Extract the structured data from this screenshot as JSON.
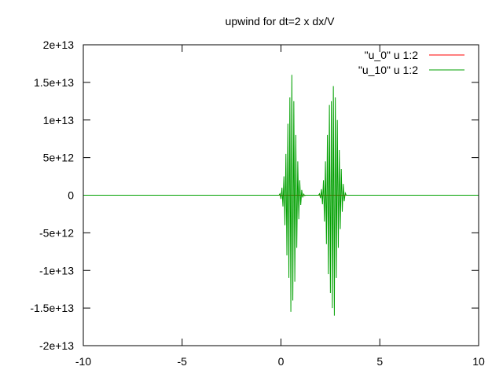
{
  "chart_data": {
    "type": "line",
    "title": "upwind for dt=2 x dx/V",
    "xlim": [
      -10,
      10
    ],
    "ylim": [
      -20000000000000.0,
      20000000000000.0
    ],
    "xticks": [
      {
        "value": -10,
        "label": "-10"
      },
      {
        "value": -5,
        "label": "-5"
      },
      {
        "value": 0,
        "label": "0"
      },
      {
        "value": 5,
        "label": "5"
      },
      {
        "value": 10,
        "label": "10"
      }
    ],
    "yticks": [
      {
        "value": 20000000000000.0,
        "label": "2e+13"
      },
      {
        "value": 15000000000000.0,
        "label": "1.5e+13"
      },
      {
        "value": 10000000000000.0,
        "label": "1e+13"
      },
      {
        "value": 5000000000000.0,
        "label": "5e+12"
      },
      {
        "value": 0,
        "label": "0"
      },
      {
        "value": -5000000000000.0,
        "label": "-5e+12"
      },
      {
        "value": -10000000000000.0,
        "label": "-1e+13"
      },
      {
        "value": -15000000000000.0,
        "label": "-1.5e+13"
      },
      {
        "value": -20000000000000.0,
        "label": "-2e+13"
      }
    ],
    "legend_position": "top-right",
    "grid": false,
    "series": [
      {
        "name": "\"u_0\" u 1:2",
        "color": "#ff0000",
        "x": [
          -10,
          10
        ],
        "y": [
          0,
          0
        ]
      },
      {
        "name": "\"u_10\" u 1:2",
        "color": "#00a000",
        "x": [
          -10,
          -0.1,
          -0.05,
          0.0,
          0.05,
          0.1,
          0.15,
          0.2,
          0.25,
          0.3,
          0.35,
          0.4,
          0.45,
          0.5,
          0.55,
          0.6,
          0.65,
          0.7,
          0.75,
          0.8,
          0.85,
          0.9,
          0.95,
          1.0,
          1.05,
          1.1,
          1.15,
          1.2,
          1.25,
          1.3,
          1.35,
          1.9,
          1.95,
          2.0,
          2.05,
          2.1,
          2.15,
          2.2,
          2.25,
          2.3,
          2.35,
          2.4,
          2.45,
          2.5,
          2.55,
          2.6,
          2.65,
          2.7,
          2.75,
          2.8,
          2.85,
          2.9,
          2.95,
          3.0,
          3.05,
          3.1,
          3.15,
          3.2,
          3.25,
          3.3,
          10
        ],
        "y": [
          0,
          0,
          200000000000.0,
          -500000000000.0,
          1000000000000.0,
          -1500000000000.0,
          2500000000000.0,
          -4000000000000.0,
          5500000000000.0,
          -8000000000000.0,
          9500000000000.0,
          -11000000000000.0,
          13000000000000.0,
          -15500000000000.0,
          16000000000000.0,
          -14000000000000.0,
          12500000000000.0,
          -11500000000000.0,
          8000000000000.0,
          -7000000000000.0,
          4500000000000.0,
          -3200000000000.0,
          2000000000000.0,
          -1300000000000.0,
          700000000000.0,
          -300000000000.0,
          150000000000.0,
          -50000000000.0,
          0,
          0,
          0,
          0,
          200000000000.0,
          -400000000000.0,
          800000000000.0,
          -1200000000000.0,
          2000000000000.0,
          -3500000000000.0,
          4500000000000.0,
          -6500000000000.0,
          8000000000000.0,
          -10500000000000.0,
          12000000000000.0,
          -13000000000000.0,
          12500000000000.0,
          -15000000000000.0,
          14500000000000.0,
          -16000000000000.0,
          13000000000000.0,
          -11000000000000.0,
          10000000000000.0,
          -7000000000000.0,
          6000000000000.0,
          -4500000000000.0,
          3500000000000.0,
          -2200000000000.0,
          1500000000000.0,
          -800000000000.0,
          300000000000.0,
          0,
          0
        ]
      }
    ]
  }
}
